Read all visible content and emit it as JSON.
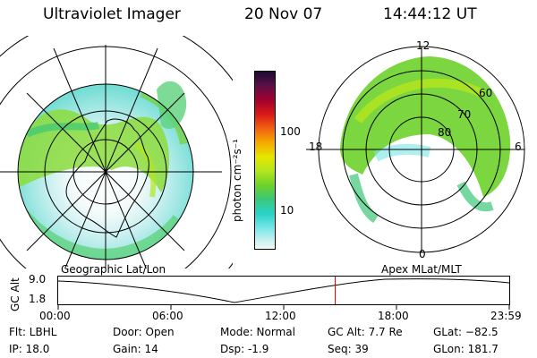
{
  "header": {
    "instrument": "Ultraviolet Imager",
    "date": "20 Nov 07",
    "time": "14:44:12 UT"
  },
  "colorbar": {
    "unit_label": "photon cm⁻²s⁻¹",
    "ticks": [
      "100",
      "10"
    ],
    "colors": [
      "#1a0a2e",
      "#4a1040",
      "#8b0030",
      "#c40020",
      "#e83010",
      "#f57a00",
      "#f5b800",
      "#e6e600",
      "#b4e61e",
      "#6ed22a",
      "#3cc878",
      "#28d2c8",
      "#78e6e6",
      "#c8f0f0",
      "#f0f8f8"
    ]
  },
  "left_image": {
    "label": "Geographic Lat/Lon"
  },
  "right_image": {
    "label": "Apex  MLat/MLT",
    "mlt_labels": {
      "top": "12",
      "left": "18",
      "right": "6",
      "bottom": "0"
    },
    "lat_labels": [
      "60",
      "70",
      "80"
    ]
  },
  "altitude_plot": {
    "ylabel": "GC Alt",
    "y_ticks": [
      "9.0",
      "1.8"
    ],
    "x_ticks": [
      "00:00",
      "06:00",
      "12:00",
      "18:00",
      "23:59"
    ],
    "marker_hour": 14.74
  },
  "footer": {
    "filter": "Flt: LBHL",
    "ip": "IP: 18.0",
    "door": "Door: Open",
    "gain": "Gain: 14",
    "mode": "Mode: Normal",
    "dsp": "Dsp:     -1.9",
    "gc_alt": "GC Alt: 7.7 Re",
    "seq": "Seq: 39",
    "glat": "GLat: −82.5",
    "glon": "GLon: 181.7"
  }
}
